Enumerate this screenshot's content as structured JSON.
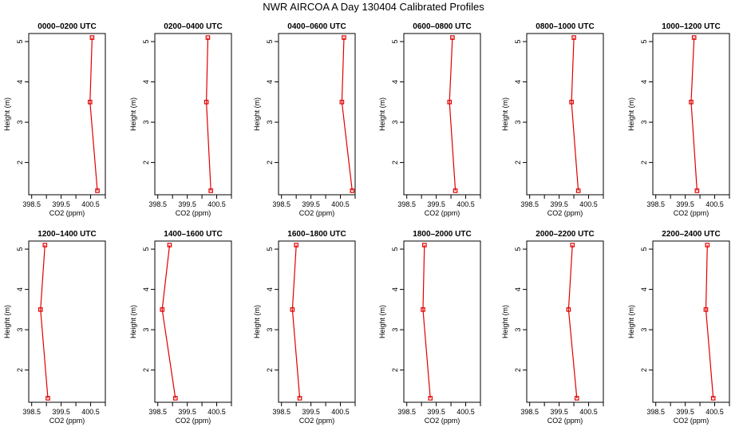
{
  "title": "NWR AIRCOA A  Day 130404  Calibrated Profiles",
  "axes": {
    "xlabel": "CO2 (ppm)",
    "ylabel": "Height (m)",
    "xticks": [
      "398.5",
      "399.5",
      "400.5"
    ],
    "xtick_values": [
      398.5,
      399.5,
      400.5
    ],
    "xminor_values": [
      399.0,
      400.0,
      401.0
    ],
    "xlim": [
      398.4,
      401.0
    ],
    "yticks": [
      "2",
      "3",
      "4",
      "5"
    ],
    "ytick_values": [
      2,
      3,
      4,
      5
    ],
    "ylim": [
      1.2,
      5.2
    ],
    "line_color": "#e00000"
  },
  "chart_data": [
    {
      "type": "line",
      "title": "0000–0200 UTC",
      "xlabel": "CO2 (ppm)",
      "ylabel": "Height (m)",
      "xlim": [
        398.4,
        401.0
      ],
      "ylim": [
        1.2,
        5.2
      ],
      "points": [
        {
          "x": 400.55,
          "y": 5.1
        },
        {
          "x": 400.48,
          "y": 3.5
        },
        {
          "x": 400.73,
          "y": 1.3
        }
      ]
    },
    {
      "type": "line",
      "title": "0200–0400 UTC",
      "xlabel": "CO2 (ppm)",
      "ylabel": "Height (m)",
      "xlim": [
        398.4,
        401.0
      ],
      "ylim": [
        1.2,
        5.2
      ],
      "points": [
        {
          "x": 400.2,
          "y": 5.1
        },
        {
          "x": 400.15,
          "y": 3.5
        },
        {
          "x": 400.3,
          "y": 1.3
        }
      ]
    },
    {
      "type": "line",
      "title": "0400–0600 UTC",
      "xlabel": "CO2 (ppm)",
      "ylabel": "Height (m)",
      "xlim": [
        398.4,
        401.0
      ],
      "ylim": [
        1.2,
        5.2
      ],
      "points": [
        {
          "x": 400.62,
          "y": 5.1
        },
        {
          "x": 400.55,
          "y": 3.5
        },
        {
          "x": 400.9,
          "y": 1.3
        }
      ]
    },
    {
      "type": "line",
      "title": "0600–0800 UTC",
      "xlabel": "CO2 (ppm)",
      "ylabel": "Height (m)",
      "xlim": [
        398.4,
        401.0
      ],
      "ylim": [
        1.2,
        5.2
      ],
      "points": [
        {
          "x": 400.05,
          "y": 5.1
        },
        {
          "x": 399.95,
          "y": 3.5
        },
        {
          "x": 400.15,
          "y": 1.3
        }
      ]
    },
    {
      "type": "line",
      "title": "0800–1000 UTC",
      "xlabel": "CO2 (ppm)",
      "ylabel": "Height (m)",
      "xlim": [
        398.4,
        401.0
      ],
      "ylim": [
        1.2,
        5.2
      ],
      "points": [
        {
          "x": 400.0,
          "y": 5.1
        },
        {
          "x": 399.92,
          "y": 3.5
        },
        {
          "x": 400.15,
          "y": 1.3
        }
      ]
    },
    {
      "type": "line",
      "title": "1000–1200 UTC",
      "xlabel": "CO2 (ppm)",
      "ylabel": "Height (m)",
      "xlim": [
        398.4,
        401.0
      ],
      "ylim": [
        1.2,
        5.2
      ],
      "points": [
        {
          "x": 399.8,
          "y": 5.1
        },
        {
          "x": 399.7,
          "y": 3.5
        },
        {
          "x": 399.9,
          "y": 1.3
        }
      ]
    },
    {
      "type": "line",
      "title": "1200–1400 UTC",
      "xlabel": "CO2 (ppm)",
      "ylabel": "Height (m)",
      "xlim": [
        398.4,
        401.0
      ],
      "ylim": [
        1.2,
        5.2
      ],
      "points": [
        {
          "x": 398.95,
          "y": 5.1
        },
        {
          "x": 398.8,
          "y": 3.5
        },
        {
          "x": 399.05,
          "y": 1.3
        }
      ]
    },
    {
      "type": "line",
      "title": "1400–1600 UTC",
      "xlabel": "CO2 (ppm)",
      "ylabel": "Height (m)",
      "xlim": [
        398.4,
        401.0
      ],
      "ylim": [
        1.2,
        5.2
      ],
      "points": [
        {
          "x": 398.9,
          "y": 5.1
        },
        {
          "x": 398.65,
          "y": 3.5
        },
        {
          "x": 399.1,
          "y": 1.3
        }
      ]
    },
    {
      "type": "line",
      "title": "1600–1800 UTC",
      "xlabel": "CO2 (ppm)",
      "ylabel": "Height (m)",
      "xlim": [
        398.4,
        401.0
      ],
      "ylim": [
        1.2,
        5.2
      ],
      "points": [
        {
          "x": 399.0,
          "y": 5.1
        },
        {
          "x": 398.87,
          "y": 3.5
        },
        {
          "x": 399.12,
          "y": 1.3
        }
      ]
    },
    {
      "type": "line",
      "title": "1800–2000 UTC",
      "xlabel": "CO2 (ppm)",
      "ylabel": "Height (m)",
      "xlim": [
        398.4,
        401.0
      ],
      "ylim": [
        1.2,
        5.2
      ],
      "points": [
        {
          "x": 399.1,
          "y": 5.1
        },
        {
          "x": 399.05,
          "y": 3.5
        },
        {
          "x": 399.3,
          "y": 1.3
        }
      ]
    },
    {
      "type": "line",
      "title": "2000–2200 UTC",
      "xlabel": "CO2 (ppm)",
      "ylabel": "Height (m)",
      "xlim": [
        398.4,
        401.0
      ],
      "ylim": [
        1.2,
        5.2
      ],
      "points": [
        {
          "x": 399.95,
          "y": 5.1
        },
        {
          "x": 399.82,
          "y": 3.5
        },
        {
          "x": 400.1,
          "y": 1.3
        }
      ]
    },
    {
      "type": "line",
      "title": "2200–2400 UTC",
      "xlabel": "CO2 (ppm)",
      "ylabel": "Height (m)",
      "xlim": [
        398.4,
        401.0
      ],
      "ylim": [
        1.2,
        5.2
      ],
      "points": [
        {
          "x": 400.25,
          "y": 5.1
        },
        {
          "x": 400.2,
          "y": 3.5
        },
        {
          "x": 400.45,
          "y": 1.3
        }
      ]
    }
  ]
}
